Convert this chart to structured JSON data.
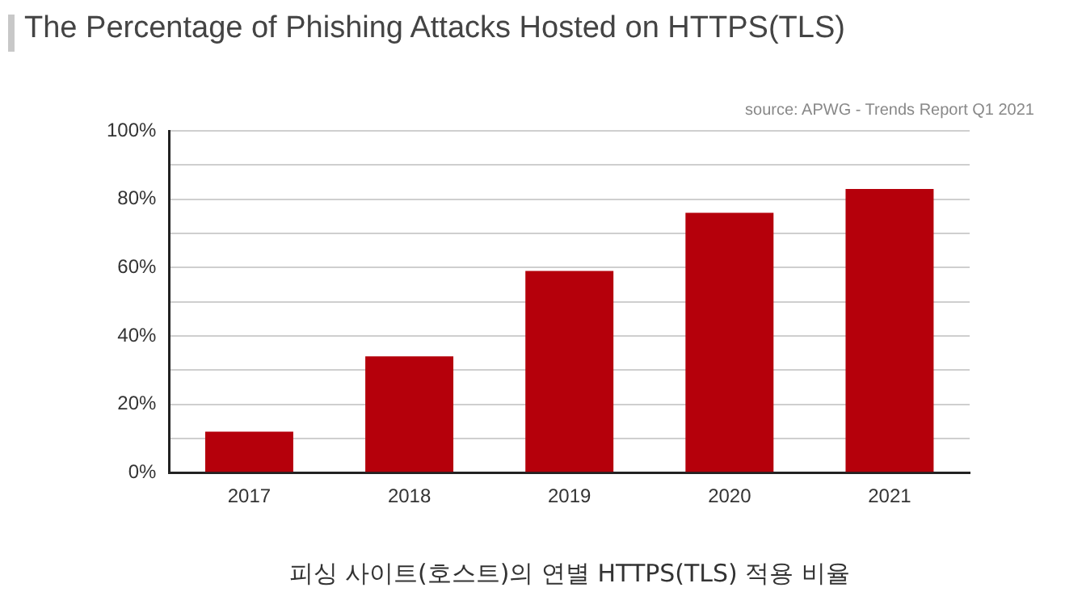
{
  "chart_data": {
    "type": "bar",
    "title": "The Percentage of Phishing Attacks Hosted on HTTPS(TLS)",
    "xlabel": "피싱 사이트(호스트)의 연별 HTTPS(TLS) 적용 비율",
    "annotations": [
      "source: APWG - Trends Report Q1 2021"
    ],
    "categories": [
      "2017",
      "2018",
      "2019",
      "2020",
      "2021"
    ],
    "values": [
      12,
      34,
      59,
      76,
      83
    ],
    "color": "#b5000b",
    "ylim": [
      0,
      100
    ],
    "yticks": [
      {
        "value": 0,
        "label": "0%"
      },
      {
        "value": 10,
        "label": null
      },
      {
        "value": 20,
        "label": "20%"
      },
      {
        "value": 30,
        "label": null
      },
      {
        "value": 40,
        "label": "40%"
      },
      {
        "value": 50,
        "label": null
      },
      {
        "value": 60,
        "label": "60%"
      },
      {
        "value": 70,
        "label": null
      },
      {
        "value": 80,
        "label": "80%"
      },
      {
        "value": 90,
        "label": null
      },
      {
        "value": 100,
        "label": "100%"
      }
    ],
    "grid": "y"
  }
}
